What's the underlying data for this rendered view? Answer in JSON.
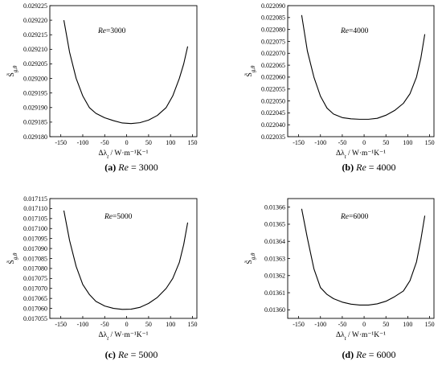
{
  "chart_data": [
    {
      "type": "line",
      "panel_tag": "(a)",
      "caption_var": "Re",
      "caption_value": " = 3000",
      "annotation_var": "Re",
      "annotation_value": "=3000",
      "xlabel": "Δλ_t / W·m⁻¹K⁻¹",
      "ylabel": "S̃_g,θ",
      "xlim": [
        -175,
        160
      ],
      "ylim": [
        0.02918,
        0.029225
      ],
      "xticks": [
        -150,
        -100,
        -50,
        0,
        50,
        100,
        150
      ],
      "yticks": [
        0.02918,
        0.029185,
        0.02919,
        0.029195,
        0.0292,
        0.029205,
        0.02921,
        0.029215,
        0.02922,
        0.029225
      ],
      "ytick_labels": [
        "0.029180",
        "0.029185",
        "0.029190",
        "0.029195",
        "0.029200",
        "0.029205",
        "0.029210",
        "0.029215",
        "0.029220",
        "0.029225"
      ],
      "series": [
        {
          "x": [
            -143,
            -130,
            -115,
            -100,
            -85,
            -70,
            -50,
            -30,
            -10,
            10,
            30,
            50,
            70,
            90,
            105,
            120,
            130,
            139
          ],
          "y": [
            0.02922,
            0.029209,
            0.0292,
            0.029194,
            0.02919,
            0.029188,
            0.0291865,
            0.0291855,
            0.0291847,
            0.0291845,
            0.0291848,
            0.0291857,
            0.0291873,
            0.02919,
            0.029194,
            0.0292,
            0.029205,
            0.029211
          ]
        }
      ]
    },
    {
      "type": "line",
      "panel_tag": "(b)",
      "caption_var": "Re",
      "caption_value": " = 4000",
      "annotation_var": "Re",
      "annotation_value": "=4000",
      "xlabel": "Δλ_t / W·m⁻¹K⁻¹",
      "ylabel": "S̃_g,θ",
      "xlim": [
        -175,
        160
      ],
      "ylim": [
        0.022035,
        0.02209
      ],
      "xticks": [
        -150,
        -100,
        -50,
        0,
        50,
        100,
        150
      ],
      "yticks": [
        0.022035,
        0.02204,
        0.022045,
        0.02205,
        0.022055,
        0.02206,
        0.022065,
        0.02207,
        0.022075,
        0.02208,
        0.022085,
        0.02209
      ],
      "ytick_labels": [
        "0.022035",
        "0.022040",
        "0.022045",
        "0.022050",
        "0.022055",
        "0.022060",
        "0.022065",
        "0.022070",
        "0.022075",
        "0.022080",
        "0.022085",
        "0.022090"
      ],
      "series": [
        {
          "x": [
            -143,
            -130,
            -115,
            -100,
            -85,
            -70,
            -50,
            -30,
            -10,
            10,
            30,
            50,
            70,
            90,
            105,
            120,
            130,
            139
          ],
          "y": [
            0.022086,
            0.022071,
            0.02206,
            0.022052,
            0.022047,
            0.0220445,
            0.022043,
            0.0220425,
            0.0220423,
            0.0220423,
            0.0220427,
            0.022044,
            0.022046,
            0.022049,
            0.022053,
            0.02206,
            0.022068,
            0.022078
          ]
        }
      ]
    },
    {
      "type": "line",
      "panel_tag": "(c)",
      "caption_var": "Re",
      "caption_value": " = 5000",
      "annotation_var": "Re",
      "annotation_value": "=5000",
      "xlabel": "Δλ_t / W·m⁻¹K⁻¹",
      "ylabel": "S̃_g,θ",
      "xlim": [
        -175,
        160
      ],
      "ylim": [
        0.017055,
        0.017115
      ],
      "xticks": [
        -150,
        -100,
        -50,
        0,
        50,
        100,
        150
      ],
      "yticks": [
        0.017055,
        0.01706,
        0.017065,
        0.01707,
        0.017075,
        0.01708,
        0.017085,
        0.01709,
        0.017095,
        0.0171,
        0.017105,
        0.01711,
        0.017115
      ],
      "ytick_labels": [
        "0.017055",
        "0.017060",
        "0.017065",
        "0.017070",
        "0.017075",
        "0.017080",
        "0.017085",
        "0.017090",
        "0.017095",
        "0.017100",
        "0.017105",
        "0.017110",
        "0.017115"
      ],
      "series": [
        {
          "x": [
            -143,
            -130,
            -115,
            -100,
            -85,
            -70,
            -50,
            -30,
            -10,
            10,
            30,
            50,
            70,
            90,
            105,
            120,
            130,
            139
          ],
          "y": [
            0.017109,
            0.017094,
            0.017081,
            0.017072,
            0.017067,
            0.0170635,
            0.0170612,
            0.01706,
            0.0170595,
            0.0170596,
            0.0170605,
            0.0170625,
            0.0170655,
            0.01707,
            0.017075,
            0.017083,
            0.017092,
            0.017103
          ]
        }
      ]
    },
    {
      "type": "line",
      "panel_tag": "(d)",
      "caption_var": "Re",
      "caption_value": " = 6000",
      "annotation_var": "Re",
      "annotation_value": "=6000",
      "xlabel": "Δλ_t / W·m⁻¹K⁻¹",
      "ylabel": "S̃_g,θ",
      "xlim": [
        -175,
        160
      ],
      "ylim": [
        0.013595,
        0.013665
      ],
      "xticks": [
        -150,
        -100,
        -50,
        0,
        50,
        100,
        150
      ],
      "yticks": [
        0.0136,
        0.01361,
        0.01362,
        0.01363,
        0.01364,
        0.01365,
        0.01366
      ],
      "ytick_labels": [
        "0.01360",
        "0.01361",
        "0.01362",
        "0.01363",
        "0.01364",
        "0.01365",
        "0.01366"
      ],
      "series": [
        {
          "x": [
            -143,
            -130,
            -115,
            -100,
            -85,
            -70,
            -50,
            -30,
            -10,
            10,
            30,
            50,
            70,
            90,
            105,
            120,
            130,
            139
          ],
          "y": [
            0.013659,
            0.013642,
            0.013624,
            0.013613,
            0.013609,
            0.0136065,
            0.0136045,
            0.0136033,
            0.0136028,
            0.0136028,
            0.0136035,
            0.013605,
            0.0136077,
            0.013611,
            0.013617,
            0.013628,
            0.013641,
            0.013655
          ]
        }
      ]
    }
  ]
}
